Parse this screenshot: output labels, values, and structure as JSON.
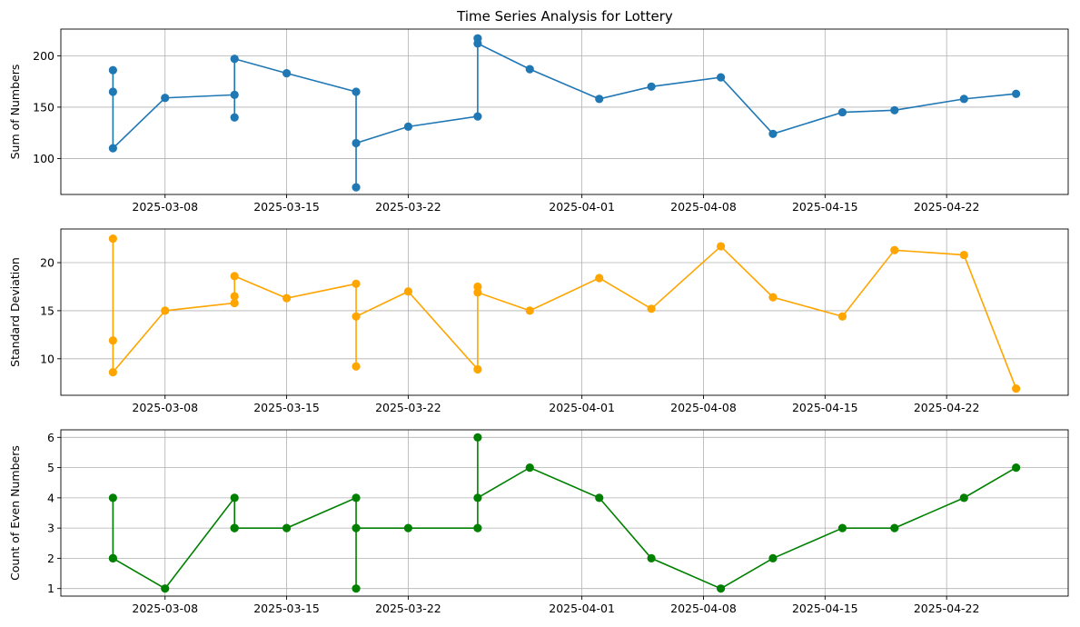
{
  "chart_data": [
    {
      "type": "line",
      "title": "Time Series Analysis for Lottery",
      "xlabel": "",
      "ylabel": "Sum of Numbers",
      "color": "#1f77b4",
      "xlim": [
        "2025-03-02",
        "2025-04-29"
      ],
      "ylim": [
        65,
        226
      ],
      "xticks": [
        "2025-03-08",
        "2025-03-15",
        "2025-03-22",
        "2025-04-01",
        "2025-04-08",
        "2025-04-15",
        "2025-04-22"
      ],
      "yticks": [
        100,
        150,
        200
      ],
      "grid": true,
      "series": [
        {
          "x": [
            "2025-03-05",
            "2025-03-05",
            "2025-03-05",
            "2025-03-08",
            "2025-03-12",
            "2025-03-12",
            "2025-03-12",
            "2025-03-15",
            "2025-03-19",
            "2025-03-19",
            "2025-03-19",
            "2025-03-22",
            "2025-03-26",
            "2025-03-26",
            "2025-03-26",
            "2025-03-29",
            "2025-04-02",
            "2025-04-05",
            "2025-04-09",
            "2025-04-12",
            "2025-04-16",
            "2025-04-19",
            "2025-04-23",
            "2025-04-26"
          ],
          "y": [
            186,
            165,
            110,
            159,
            162,
            140,
            197,
            183,
            165,
            72,
            115,
            131,
            141,
            217,
            212,
            187,
            158,
            170,
            179,
            124,
            145,
            147,
            158,
            163
          ]
        }
      ]
    },
    {
      "type": "line",
      "title": "",
      "xlabel": "",
      "ylabel": "Standard Deviation",
      "color": "#ffa500",
      "xlim": [
        "2025-03-02",
        "2025-04-29"
      ],
      "ylim": [
        6.2,
        23.5
      ],
      "xticks": [
        "2025-03-08",
        "2025-03-15",
        "2025-03-22",
        "2025-04-01",
        "2025-04-08",
        "2025-04-15",
        "2025-04-22"
      ],
      "yticks": [
        10,
        15,
        20
      ],
      "grid": true,
      "series": [
        {
          "x": [
            "2025-03-05",
            "2025-03-05",
            "2025-03-05",
            "2025-03-08",
            "2025-03-12",
            "2025-03-12",
            "2025-03-12",
            "2025-03-15",
            "2025-03-19",
            "2025-03-19",
            "2025-03-19",
            "2025-03-22",
            "2025-03-26",
            "2025-03-26",
            "2025-03-26",
            "2025-03-29",
            "2025-04-02",
            "2025-04-05",
            "2025-04-09",
            "2025-04-12",
            "2025-04-16",
            "2025-04-19",
            "2025-04-23",
            "2025-04-26"
          ],
          "y": [
            22.5,
            11.9,
            8.6,
            15.0,
            15.8,
            16.5,
            18.6,
            16.3,
            17.8,
            9.2,
            14.4,
            17.0,
            8.9,
            17.5,
            16.9,
            15.0,
            18.4,
            15.2,
            21.7,
            16.4,
            14.4,
            21.3,
            20.8,
            6.9
          ]
        }
      ]
    },
    {
      "type": "line",
      "title": "",
      "xlabel": "",
      "ylabel": "Count of Even Numbers",
      "color": "#008000",
      "xlim": [
        "2025-03-02",
        "2025-04-29"
      ],
      "ylim": [
        0.75,
        6.25
      ],
      "xticks": [
        "2025-03-08",
        "2025-03-15",
        "2025-03-22",
        "2025-04-01",
        "2025-04-08",
        "2025-04-15",
        "2025-04-22"
      ],
      "yticks": [
        1,
        2,
        3,
        4,
        5,
        6
      ],
      "grid": true,
      "series": [
        {
          "x": [
            "2025-03-05",
            "2025-03-05",
            "2025-03-05",
            "2025-03-08",
            "2025-03-12",
            "2025-03-12",
            "2025-03-12",
            "2025-03-15",
            "2025-03-19",
            "2025-03-19",
            "2025-03-19",
            "2025-03-22",
            "2025-03-26",
            "2025-03-26",
            "2025-03-26",
            "2025-03-29",
            "2025-04-02",
            "2025-04-05",
            "2025-04-09",
            "2025-04-12",
            "2025-04-16",
            "2025-04-19",
            "2025-04-23",
            "2025-04-26"
          ],
          "y": [
            2,
            4,
            2,
            1,
            4,
            3,
            3,
            3,
            4,
            1,
            3,
            3,
            3,
            6,
            4,
            5,
            4,
            2,
            1,
            2,
            3,
            3,
            4,
            5
          ]
        }
      ]
    }
  ]
}
